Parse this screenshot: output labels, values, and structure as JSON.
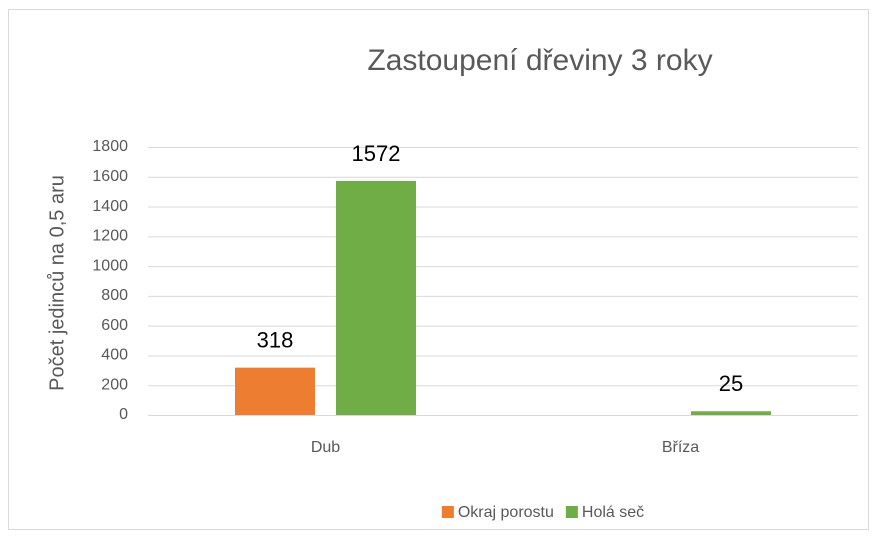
{
  "chart_data": {
    "type": "bar",
    "title": "Zastoupení dřeviny 3 roky",
    "y_label": "Počet jedinců na 0,5 aru",
    "categories": [
      "Dub",
      "Bříza"
    ],
    "series": [
      {
        "name": "Okraj porostu",
        "color": "#ed7d31",
        "values": [
          318,
          null
        ]
      },
      {
        "name": "Holá seč",
        "color": "#70ad47",
        "values": [
          1572,
          25
        ]
      }
    ],
    "ylim": [
      0,
      1800
    ],
    "yticks": [
      0,
      200,
      400,
      600,
      800,
      1000,
      1200,
      1400,
      1600,
      1800
    ],
    "grid": true,
    "legend": "bottom"
  }
}
